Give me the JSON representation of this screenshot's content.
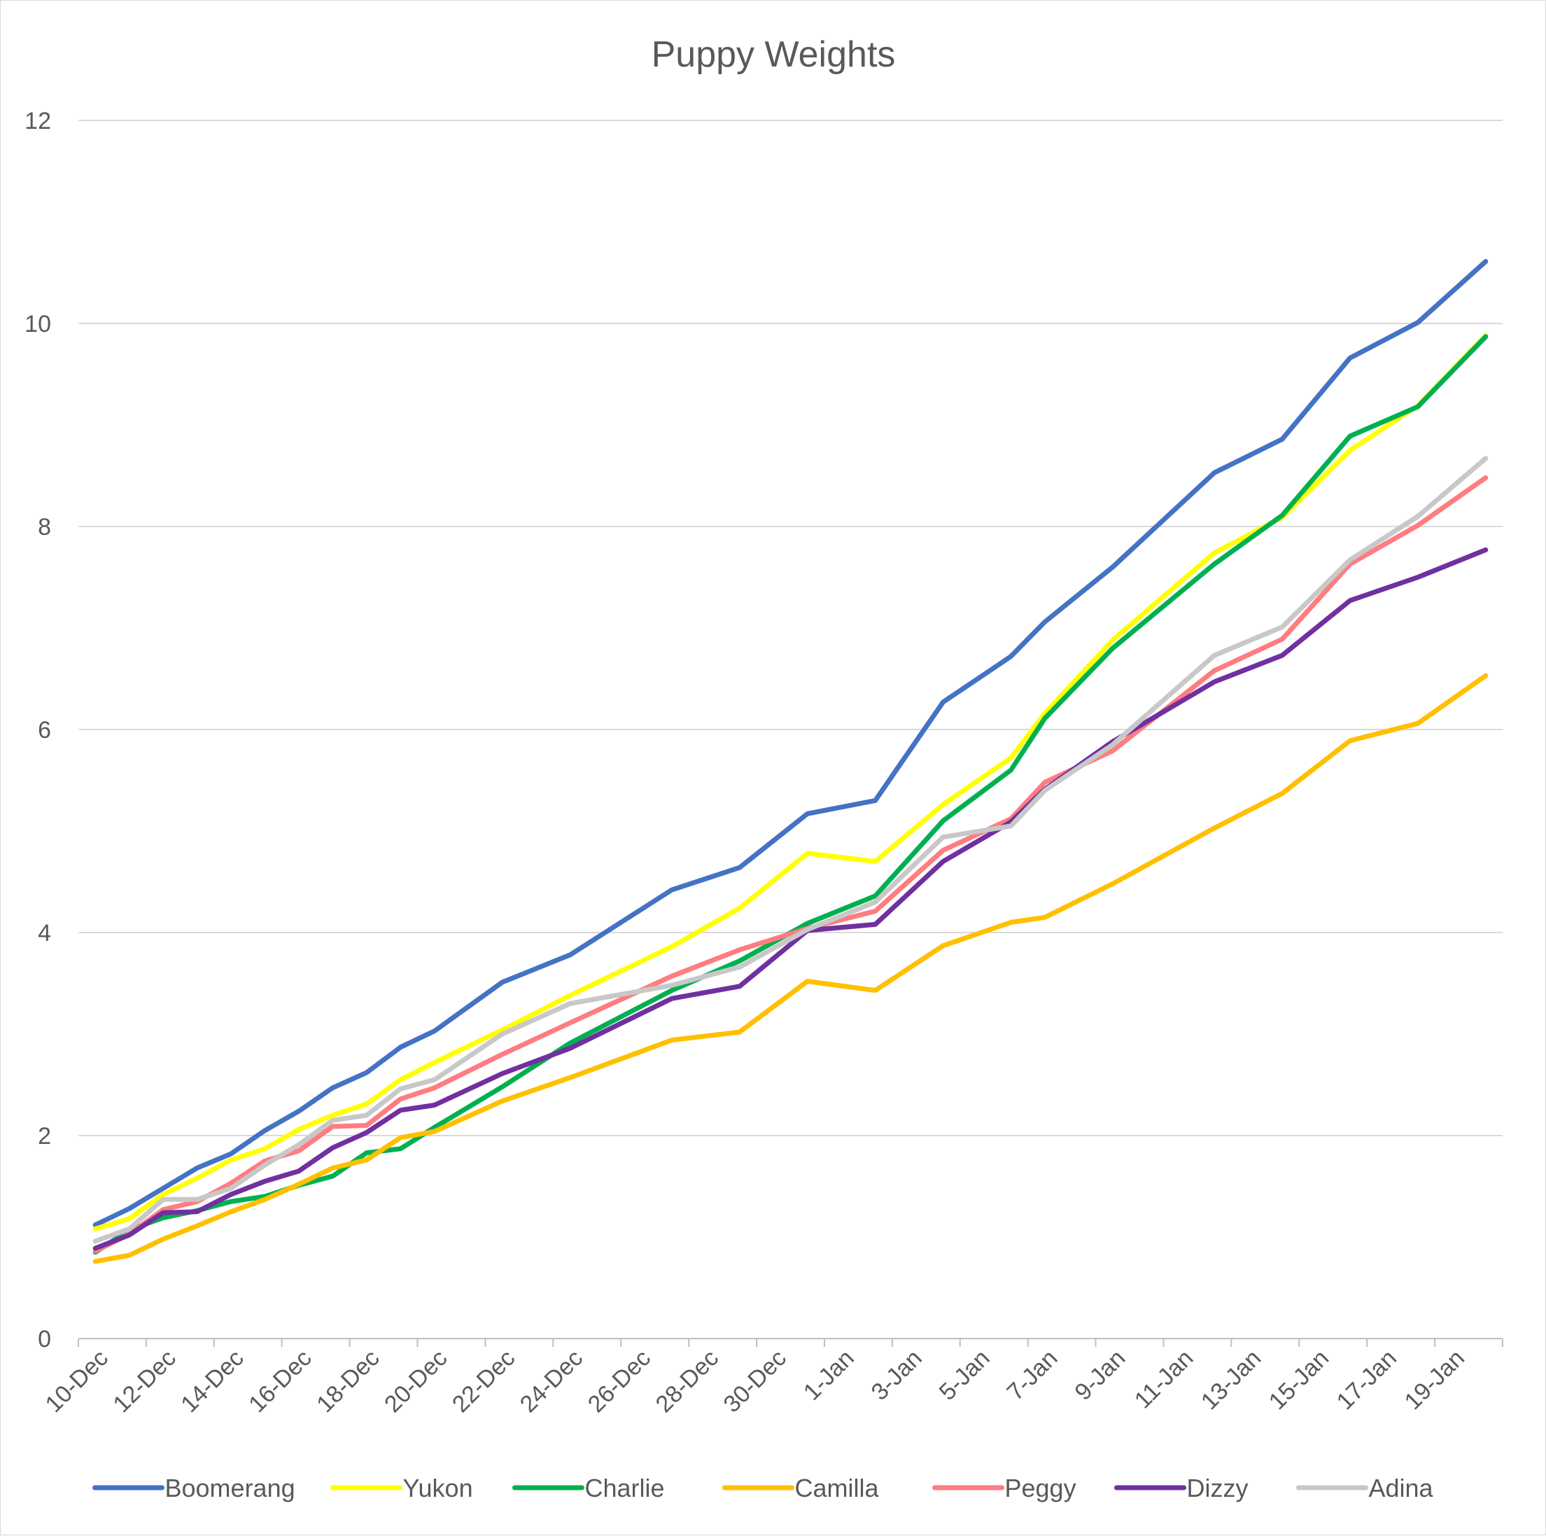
{
  "chart_data": {
    "type": "line",
    "title": "Puppy Weights",
    "xlabel": "",
    "ylabel": "",
    "ylim": [
      0,
      12
    ],
    "y_ticks": [
      0,
      2,
      4,
      6,
      8,
      10,
      12
    ],
    "grid": true,
    "legend_position": "bottom",
    "x": [
      "10-Dec",
      "11-Dec",
      "12-Dec",
      "13-Dec",
      "14-Dec",
      "15-Dec",
      "16-Dec",
      "17-Dec",
      "18-Dec",
      "19-Dec",
      "20-Dec",
      "22-Dec",
      "24-Dec",
      "27-Dec",
      "29-Dec",
      "31-Dec",
      "2-Jan",
      "4-Jan",
      "6-Jan",
      "7-Jan",
      "9-Jan",
      "12-Jan",
      "14-Jan",
      "16-Jan",
      "18-Jan",
      "20-Jan"
    ],
    "x_tick_labels": [
      "10-Dec",
      "12-Dec",
      "14-Dec",
      "16-Dec",
      "18-Dec",
      "20-Dec",
      "22-Dec",
      "24-Dec",
      "26-Dec",
      "28-Dec",
      "30-Dec",
      "1-Jan",
      "3-Jan",
      "5-Jan",
      "7-Jan",
      "9-Jan",
      "11-Jan",
      "13-Jan",
      "15-Jan",
      "17-Jan",
      "19-Jan"
    ],
    "series": [
      {
        "name": "Boomerang",
        "color": "#4472c4",
        "values": [
          1.12,
          1.28,
          1.48,
          1.68,
          1.82,
          2.05,
          2.24,
          2.47,
          2.62,
          2.87,
          3.03,
          3.51,
          3.78,
          4.42,
          4.64,
          5.17,
          5.3,
          6.27,
          6.72,
          7.06,
          7.6,
          8.53,
          8.86,
          9.66,
          10.01,
          10.61
        ]
      },
      {
        "name": "Yukon",
        "color": "#ffff00",
        "values": [
          1.08,
          1.18,
          1.42,
          1.58,
          1.76,
          1.87,
          2.06,
          2.2,
          2.31,
          2.55,
          2.72,
          3.04,
          3.38,
          3.86,
          4.24,
          4.78,
          4.7,
          5.26,
          5.72,
          6.16,
          6.88,
          7.74,
          8.09,
          8.75,
          9.19,
          9.88
        ]
      },
      {
        "name": "Charlie",
        "color": "#00b050",
        "values": [
          0.85,
          1.07,
          1.19,
          1.26,
          1.35,
          1.4,
          1.51,
          1.6,
          1.83,
          1.87,
          2.08,
          2.48,
          2.91,
          3.43,
          3.72,
          4.09,
          4.36,
          5.1,
          5.6,
          6.11,
          6.8,
          7.63,
          8.11,
          8.89,
          9.18,
          9.87
        ]
      },
      {
        "name": "Camilla",
        "color": "#ffc000",
        "values": [
          0.76,
          0.82,
          0.98,
          1.11,
          1.25,
          1.37,
          1.52,
          1.68,
          1.76,
          1.98,
          2.04,
          2.34,
          2.57,
          2.94,
          3.02,
          3.52,
          3.43,
          3.87,
          4.1,
          4.15,
          4.48,
          5.03,
          5.37,
          5.89,
          6.06,
          6.53
        ]
      },
      {
        "name": "Peggy",
        "color": "#ff7c80",
        "values": [
          0.86,
          1.03,
          1.27,
          1.35,
          1.53,
          1.75,
          1.85,
          2.09,
          2.1,
          2.36,
          2.47,
          2.8,
          3.11,
          3.57,
          3.83,
          4.04,
          4.21,
          4.81,
          5.12,
          5.48,
          5.79,
          6.58,
          6.89,
          7.63,
          8.01,
          8.48
        ]
      },
      {
        "name": "Dizzy",
        "color": "#7030a0",
        "values": [
          0.89,
          1.02,
          1.24,
          1.25,
          1.42,
          1.55,
          1.65,
          1.88,
          2.03,
          2.25,
          2.3,
          2.61,
          2.86,
          3.35,
          3.47,
          4.02,
          4.08,
          4.7,
          5.09,
          5.41,
          5.88,
          6.47,
          6.73,
          7.27,
          7.5,
          7.77
        ]
      },
      {
        "name": "Adina",
        "color": "#c8c8c8",
        "values": [
          0.96,
          1.08,
          1.37,
          1.37,
          1.48,
          1.71,
          1.91,
          2.15,
          2.2,
          2.46,
          2.55,
          3.0,
          3.3,
          3.48,
          3.66,
          4.03,
          4.3,
          4.94,
          5.05,
          5.4,
          5.85,
          6.73,
          7.01,
          7.67,
          8.1,
          8.67
        ]
      }
    ]
  }
}
